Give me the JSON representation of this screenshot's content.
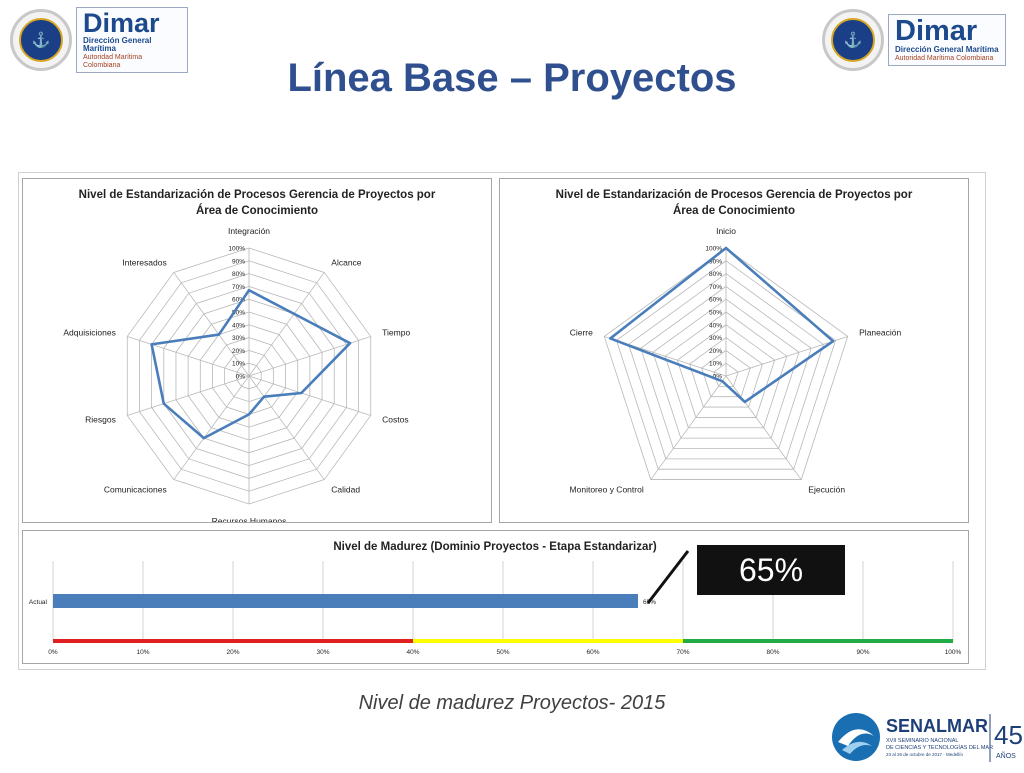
{
  "slide": {
    "title": "Línea Base – Proyectos",
    "caption": "Nivel de madurez Proyectos- 2015",
    "highlight_value": "65%"
  },
  "logos": {
    "dimar": {
      "name": "Dimar",
      "line1": "Dirección General Marítima",
      "line2": "Autoridad Marítima Colombiana"
    },
    "senalmar": {
      "name": "SENALMAR",
      "line1": "XVII SEMINARIO NACIONAL",
      "line2": "DE CIENCIAS Y TECNOLOGÍAS DEL MAR",
      "line3": "23 al 26 de octubre de 2017 · Medellín",
      "years": "45",
      "years_label": "AÑOS"
    }
  },
  "chart_data": [
    {
      "type": "radar",
      "title": "Nivel de Estandarización de Procesos Gerencia de Proyectos por Área de Conocimiento",
      "title_lines": [
        "Nivel de Estandarización de Procesos Gerencia de Proyectos por",
        "Área de Conocimiento"
      ],
      "categories": [
        "Integración",
        "Alcance",
        "Tiempo",
        "Costos",
        "Calidad",
        "Recursos Humanos",
        "Comunicaciones",
        "Riesgos",
        "Adquisiciones",
        "Interesados"
      ],
      "values": [
        67,
        60,
        83,
        43,
        20,
        30,
        60,
        70,
        80,
        40
      ],
      "ylim": [
        0,
        100
      ],
      "ticks": [
        "0%",
        "10%",
        "20%",
        "30%",
        "40%",
        "50%",
        "60%",
        "70%",
        "80%",
        "90%",
        "100%"
      ],
      "color": "#4a7ebb",
      "grid": true
    },
    {
      "type": "radar",
      "title": "Nivel de Estandarización de Procesos Gerencia de Proyectos por Área de Conocimiento",
      "title_lines": [
        "Nivel de Estandarización de Procesos Gerencia de Proyectos por",
        "Área de Conocimiento"
      ],
      "categories": [
        "Inicio",
        "Planeación",
        "Ejecución",
        "Monitoreo y Control",
        "Cierre"
      ],
      "values": [
        100,
        88,
        25,
        5,
        95
      ],
      "ylim": [
        0,
        100
      ],
      "ticks": [
        "0%",
        "10%",
        "20%",
        "30%",
        "40%",
        "50%",
        "60%",
        "70%",
        "80%",
        "90%",
        "100%"
      ],
      "color": "#4a7ebb",
      "grid": true
    },
    {
      "type": "bar",
      "orientation": "horizontal",
      "title": "Nivel de Madurez (Dominio Proyectos - Etapa Estandarizar)",
      "categories": [
        "Actual"
      ],
      "values": [
        65
      ],
      "data_labels": [
        "65%"
      ],
      "xlim": [
        0,
        100
      ],
      "x_ticks": [
        "0%",
        "10%",
        "20%",
        "30%",
        "40%",
        "50%",
        "60%",
        "70%",
        "80%",
        "90%",
        "100%"
      ],
      "bands": [
        {
          "from": 0,
          "to": 40,
          "color": "#e02020"
        },
        {
          "from": 40,
          "to": 70,
          "color": "#ffff00"
        },
        {
          "from": 70,
          "to": 100,
          "color": "#22aa44"
        }
      ],
      "color": "#4a7ebb",
      "grid": true
    }
  ]
}
